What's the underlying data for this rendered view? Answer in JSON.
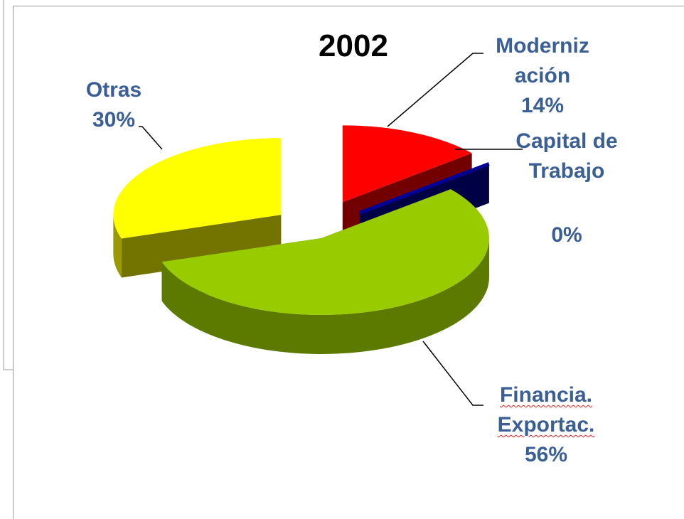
{
  "chart_data": {
    "type": "pie",
    "title": "2002",
    "categories": [
      "Modernización",
      "Capital de Trabajo",
      "Financia. Exportac.",
      "Otras"
    ],
    "values": [
      14,
      0,
      56,
      30
    ],
    "value_labels": [
      "14%",
      "0%",
      "56%",
      "30%"
    ],
    "colors": [
      "#ff0000",
      "#000099",
      "#99cc00",
      "#ffff00"
    ],
    "explode": [
      true,
      true,
      false,
      true
    ]
  }
}
